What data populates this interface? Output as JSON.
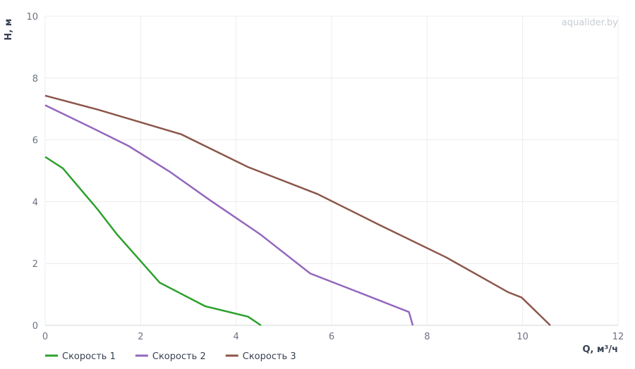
{
  "chart_data": {
    "type": "line",
    "watermark": "aqualider.by",
    "x_label": "Q, м³/ч",
    "y_label": "H, м",
    "xlim": [
      0,
      12
    ],
    "xticks": [
      0,
      2,
      4,
      6,
      8,
      10,
      12
    ],
    "ylim": [
      0,
      10
    ],
    "yticks": [
      0,
      2,
      4,
      6,
      8,
      10
    ],
    "grid": true,
    "legend": "bottom-left",
    "series": [
      {
        "name": "Скорость 1",
        "color": "#2ca02c",
        "x": [
          0,
          0.37,
          1.1,
          1.5,
          2.4,
          3.35,
          4.25,
          4.52
        ],
        "values": [
          5.45,
          5.08,
          3.75,
          2.95,
          1.38,
          0.62,
          0.28,
          0
        ]
      },
      {
        "name": "Скорость 2",
        "color": "#9467bd",
        "x": [
          0,
          0.9,
          1.75,
          2.6,
          3.45,
          4.5,
          5.55,
          6.6,
          7.62,
          7.7
        ],
        "values": [
          7.12,
          6.45,
          5.8,
          4.98,
          4.05,
          2.95,
          1.68,
          1.05,
          0.43,
          0
        ]
      },
      {
        "name": "Скорость 3",
        "color": "#8c564b",
        "x": [
          0,
          1.1,
          2.85,
          4.25,
          5.7,
          7,
          8.4,
          9.7,
          9.98,
          10.58
        ],
        "values": [
          7.43,
          6.98,
          6.18,
          5.12,
          4.25,
          3.25,
          2.2,
          1.07,
          0.9,
          0
        ]
      }
    ]
  }
}
